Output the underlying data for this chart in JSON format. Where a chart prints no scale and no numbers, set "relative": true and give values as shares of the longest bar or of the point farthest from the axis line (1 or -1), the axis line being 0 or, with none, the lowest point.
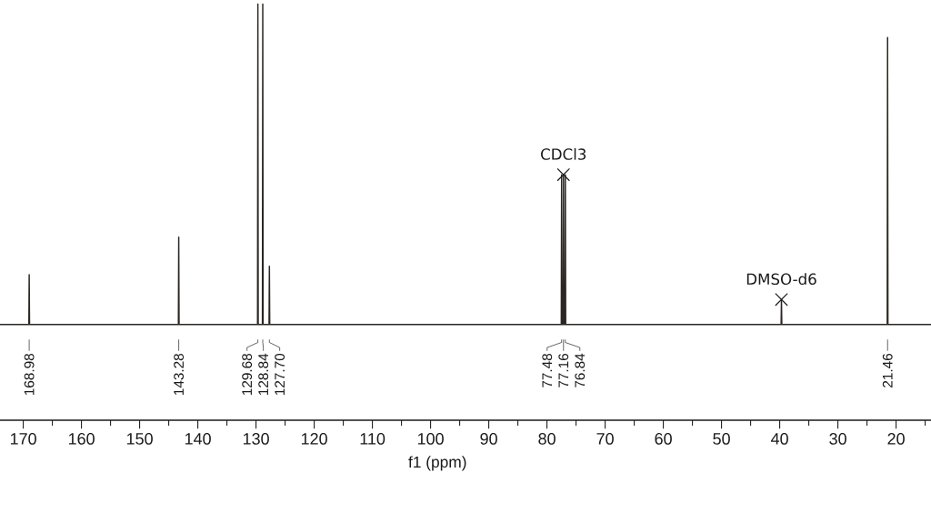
{
  "chart_data": {
    "type": "line",
    "relative": true,
    "xlabel": "f1 (ppm)",
    "xlim": [
      174,
      14
    ],
    "xticks": [
      170,
      {
        "value": 165,
        "label": null
      },
      160,
      {
        "value": 155,
        "label": null
      },
      150,
      {
        "value": 145,
        "label": null
      },
      140,
      {
        "value": 135,
        "label": null
      },
      130,
      {
        "value": 125,
        "label": null
      },
      120,
      {
        "value": 115,
        "label": null
      },
      110,
      {
        "value": 105,
        "label": null
      },
      100,
      {
        "value": 95,
        "label": null
      },
      90,
      {
        "value": 85,
        "label": null
      },
      80,
      {
        "value": 75,
        "label": null
      },
      70,
      {
        "value": 65,
        "label": null
      },
      60,
      {
        "value": 55,
        "label": null
      },
      50,
      {
        "value": 45,
        "label": null
      },
      40,
      {
        "value": 35,
        "label": null
      },
      30,
      {
        "value": 25,
        "label": null
      },
      20,
      {
        "value": 15,
        "label": null
      }
    ],
    "series": [
      {
        "color": "#2b2622",
        "x": [
          174,
          169.04,
          168.98,
          168.92,
          143.34,
          143.28,
          143.22,
          129.74,
          129.68,
          129.62,
          128.9,
          128.84,
          128.78,
          127.76,
          127.7,
          127.64,
          77.54,
          77.48,
          77.42,
          77.22,
          77.16,
          77.1,
          76.9,
          76.84,
          76.78,
          39.76,
          39.7,
          39.64,
          21.52,
          21.46,
          21.4,
          14
        ],
        "values": [
          0.23,
          0.23,
          0.35,
          0.23,
          0.23,
          0.44,
          0.23,
          0.23,
          1,
          0.23,
          0.23,
          1,
          0.23,
          0.23,
          0.37,
          0.23,
          0.23,
          0.59,
          0.23,
          0.23,
          0.59,
          0.23,
          0.23,
          0.59,
          0.23,
          0.23,
          0.29,
          0.23,
          0.23,
          0.92,
          0.23,
          0.23
        ]
      }
    ],
    "annotations": [
      {
        "text": "168.98",
        "x": 168.98
      },
      {
        "text": "143.28",
        "x": 143.28
      },
      {
        "text": "129.68",
        "x": 129.68
      },
      {
        "text": "128.84",
        "x": 128.84
      },
      {
        "text": "127.70",
        "x": 127.7
      },
      {
        "text": "77.48",
        "x": 77.48
      },
      {
        "text": "77.16",
        "x": 77.16
      },
      {
        "text": "76.84",
        "x": 76.84
      },
      {
        "text": "21.46",
        "x": 21.46
      },
      {
        "text": "CDCl3",
        "x": 77.16,
        "y": 0.59
      },
      {
        "text": "DMSO-d6",
        "x": 39.7,
        "y": 0.29
      }
    ]
  }
}
